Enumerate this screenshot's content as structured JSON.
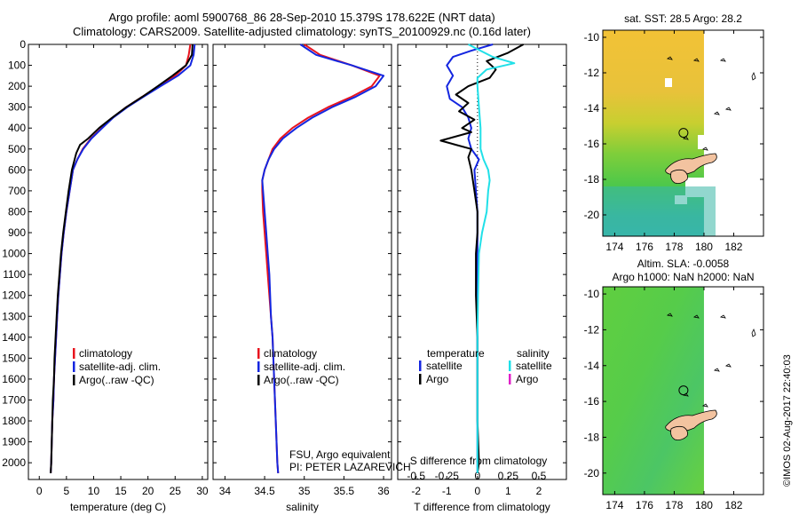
{
  "title_line1": "Argo profile: aoml 5900768_86 28-Sep-2010 15.379S 178.622E (NRT data)",
  "title_line2": "Climatology: CARS2009. Satellite-adjusted climatology: synTS_20100929.nc (0.16d later)",
  "credit": "©IMOS 02-Aug-2017 22:40:03",
  "colors": {
    "climatology": "#e8141e",
    "satellite": "#1426e0",
    "argo": "#000000",
    "sal_satellite": "#20e0e8",
    "sal_argo": "#e020c8"
  },
  "depth_ticks": [
    "0",
    "100",
    "200",
    "300",
    "400",
    "500",
    "600",
    "700",
    "800",
    "900",
    "1000",
    "1100",
    "1200",
    "1300",
    "1400",
    "1500",
    "1600",
    "1700",
    "1800",
    "1900",
    "2000"
  ],
  "chart_data": [
    {
      "type": "line",
      "panel": "temperature",
      "xlabel": "temperature (deg C)",
      "xticks": [
        "0",
        "5",
        "10",
        "15",
        "20",
        "25",
        "30"
      ],
      "xlim": [
        -2,
        31
      ],
      "ylim": [
        0,
        2080
      ],
      "y_inverted": true,
      "legend": [
        "climatology",
        "satellite-adj. clim.",
        "Argo(..raw -QC)"
      ],
      "series": [
        {
          "name": "climatology",
          "color": "red",
          "points": [
            [
              27.8,
              0
            ],
            [
              27.5,
              50
            ],
            [
              27,
              100
            ],
            [
              25,
              150
            ],
            [
              22,
              200
            ],
            [
              19,
              250
            ],
            [
              16,
              300
            ],
            [
              13.5,
              350
            ],
            [
              11.5,
              400
            ],
            [
              9.5,
              450
            ],
            [
              8,
              500
            ],
            [
              7,
              550
            ],
            [
              6.2,
              600
            ],
            [
              5.6,
              700
            ],
            [
              5,
              800
            ],
            [
              4.5,
              900
            ],
            [
              4.1,
              1000
            ],
            [
              3.8,
              1100
            ],
            [
              3.5,
              1200
            ],
            [
              3.3,
              1300
            ],
            [
              3.1,
              1400
            ],
            [
              2.9,
              1500
            ],
            [
              2.7,
              1600
            ],
            [
              2.6,
              1700
            ],
            [
              2.4,
              1800
            ],
            [
              2.3,
              1900
            ],
            [
              2.2,
              2000
            ],
            [
              2.1,
              2050
            ]
          ]
        },
        {
          "name": "satellite-adj. clim.",
          "color": "blue",
          "points": [
            [
              28.6,
              0
            ],
            [
              28.4,
              50
            ],
            [
              27.8,
              100
            ],
            [
              25.5,
              150
            ],
            [
              22.3,
              200
            ],
            [
              19.2,
              250
            ],
            [
              16.2,
              300
            ],
            [
              13.6,
              350
            ],
            [
              11.6,
              400
            ],
            [
              9.6,
              450
            ],
            [
              8.1,
              500
            ],
            [
              7,
              550
            ],
            [
              6.2,
              600
            ],
            [
              5.6,
              700
            ],
            [
              5,
              800
            ],
            [
              4.5,
              900
            ],
            [
              4.1,
              1000
            ],
            [
              3.8,
              1100
            ],
            [
              3.5,
              1200
            ],
            [
              3.3,
              1300
            ],
            [
              3.1,
              1400
            ],
            [
              2.9,
              1500
            ],
            [
              2.7,
              1600
            ],
            [
              2.6,
              1700
            ],
            [
              2.4,
              1800
            ],
            [
              2.3,
              1900
            ],
            [
              2.2,
              2000
            ],
            [
              2.1,
              2050
            ]
          ]
        },
        {
          "name": "Argo(..raw -QC)",
          "color": "black",
          "points": [
            [
              28.2,
              0
            ],
            [
              28.1,
              50
            ],
            [
              27,
              100
            ],
            [
              24.5,
              150
            ],
            [
              21.8,
              200
            ],
            [
              19,
              250
            ],
            [
              16,
              300
            ],
            [
              13.4,
              350
            ],
            [
              11,
              400
            ],
            [
              9,
              450
            ],
            [
              7.5,
              480
            ],
            [
              6.8,
              520
            ],
            [
              6,
              600
            ],
            [
              5.4,
              700
            ],
            [
              4.9,
              800
            ],
            [
              4.4,
              900
            ],
            [
              4,
              1000
            ],
            [
              3.7,
              1100
            ],
            [
              3.4,
              1200
            ],
            [
              3.2,
              1300
            ],
            [
              3,
              1400
            ],
            [
              2.8,
              1500
            ],
            [
              2.7,
              1600
            ],
            [
              2.5,
              1700
            ],
            [
              2.4,
              1800
            ],
            [
              2.3,
              1900
            ],
            [
              2.2,
              2000
            ],
            [
              2.1,
              2050
            ]
          ]
        }
      ]
    },
    {
      "type": "line",
      "panel": "salinity",
      "xlabel": "salinity",
      "xticks": [
        "34",
        "34.5",
        "35",
        "35.5",
        "36"
      ],
      "xlim": [
        33.85,
        36.1
      ],
      "ylim": [
        0,
        2080
      ],
      "y_inverted": true,
      "legend": [
        "climatology",
        "satellite-adj. clim.",
        "Argo(..raw -QC)"
      ],
      "annotation": [
        "FSU, Argo equivalent",
        "PI: PETER LAZAREVICH"
      ],
      "series": [
        {
          "name": "climatology",
          "color": "red",
          "points": [
            [
              35.0,
              0
            ],
            [
              35.2,
              50
            ],
            [
              35.6,
              100
            ],
            [
              35.95,
              150
            ],
            [
              35.85,
              200
            ],
            [
              35.6,
              250
            ],
            [
              35.3,
              300
            ],
            [
              35.05,
              350
            ],
            [
              34.85,
              400
            ],
            [
              34.7,
              450
            ],
            [
              34.6,
              500
            ],
            [
              34.55,
              550
            ],
            [
              34.5,
              600
            ],
            [
              34.47,
              650
            ],
            [
              34.47,
              700
            ],
            [
              34.48,
              800
            ],
            [
              34.5,
              900
            ],
            [
              34.52,
              1000
            ],
            [
              34.54,
              1100
            ],
            [
              34.56,
              1200
            ],
            [
              34.58,
              1300
            ],
            [
              34.6,
              1400
            ],
            [
              34.61,
              1500
            ],
            [
              34.62,
              1600
            ],
            [
              34.63,
              1700
            ],
            [
              34.64,
              1800
            ],
            [
              34.65,
              1900
            ],
            [
              34.66,
              2000
            ],
            [
              34.67,
              2050
            ]
          ]
        },
        {
          "name": "satellite-adj. clim.",
          "color": "blue",
          "points": [
            [
              34.95,
              0
            ],
            [
              35.15,
              50
            ],
            [
              35.6,
              100
            ],
            [
              36.0,
              150
            ],
            [
              35.9,
              200
            ],
            [
              35.65,
              250
            ],
            [
              35.35,
              300
            ],
            [
              35.1,
              350
            ],
            [
              34.9,
              400
            ],
            [
              34.73,
              450
            ],
            [
              34.62,
              500
            ],
            [
              34.55,
              550
            ],
            [
              34.5,
              600
            ],
            [
              34.47,
              650
            ],
            [
              34.48,
              700
            ],
            [
              34.5,
              800
            ],
            [
              34.52,
              900
            ],
            [
              34.54,
              1000
            ],
            [
              34.56,
              1100
            ],
            [
              34.57,
              1200
            ],
            [
              34.58,
              1300
            ],
            [
              34.6,
              1400
            ],
            [
              34.61,
              1500
            ],
            [
              34.62,
              1600
            ],
            [
              34.63,
              1700
            ],
            [
              34.64,
              1800
            ],
            [
              34.65,
              1900
            ],
            [
              34.66,
              2000
            ],
            [
              34.67,
              2050
            ]
          ]
        }
      ]
    },
    {
      "type": "line",
      "panel": "difference",
      "xlabel": "T difference from climatology",
      "xlabel_top": "S difference from climatology",
      "xticks": [
        "-2",
        "-1",
        "0",
        "1",
        "2"
      ],
      "xticks_salinity": [
        "-0.5",
        "-0.25",
        "0",
        "0.25",
        "0.5"
      ],
      "xlim": [
        -2.6,
        2.9
      ],
      "ylim": [
        0,
        2080
      ],
      "y_inverted": true,
      "legend": {
        "temperature": [
          "temperature",
          "satellite",
          "Argo"
        ],
        "salinity": [
          "salinity",
          "satellite",
          "Argo"
        ]
      },
      "series": [
        {
          "name": "temperature satellite",
          "color": "blue",
          "points": [
            [
              0.5,
              0
            ],
            [
              -0.2,
              30
            ],
            [
              -0.8,
              60
            ],
            [
              -1,
              100
            ],
            [
              -0.8,
              150
            ],
            [
              -1,
              200
            ],
            [
              -0.9,
              260
            ],
            [
              -0.5,
              300
            ],
            [
              -0.3,
              350
            ],
            [
              -0.2,
              400
            ],
            [
              -0.3,
              450
            ],
            [
              -0.2,
              500
            ],
            [
              0.05,
              550
            ],
            [
              -0.1,
              600
            ],
            [
              -0.05,
              700
            ],
            [
              0,
              800
            ],
            [
              0,
              900
            ],
            [
              0,
              1000
            ],
            [
              0,
              2050
            ]
          ]
        },
        {
          "name": "temperature Argo",
          "color": "black",
          "points": [
            [
              1.5,
              0
            ],
            [
              1,
              40
            ],
            [
              0.3,
              80
            ],
            [
              0.6,
              120
            ],
            [
              0.4,
              160
            ],
            [
              -0.3,
              200
            ],
            [
              -0.7,
              240
            ],
            [
              -0.3,
              280
            ],
            [
              -0.6,
              320
            ],
            [
              -0.1,
              360
            ],
            [
              -0.5,
              400
            ],
            [
              -0.2,
              420
            ],
            [
              -1.2,
              460
            ],
            [
              -0.7,
              480
            ],
            [
              -0.2,
              500
            ],
            [
              -0.3,
              540
            ],
            [
              -0.2,
              600
            ],
            [
              -0.1,
              700
            ],
            [
              0,
              800
            ],
            [
              0,
              900
            ],
            [
              -0.05,
              1000
            ],
            [
              -0.05,
              1200
            ],
            [
              0,
              1400
            ],
            [
              0,
              1600
            ],
            [
              0,
              1800
            ],
            [
              0.05,
              2000
            ],
            [
              0,
              2050
            ]
          ]
        },
        {
          "name": "salinity satellite",
          "color": "cyan",
          "points": [
            [
              -0.3,
              0
            ],
            [
              0.1,
              30
            ],
            [
              0.5,
              60
            ],
            [
              1.2,
              90
            ],
            [
              0.3,
              120
            ],
            [
              0,
              160
            ],
            [
              0,
              200
            ],
            [
              0.05,
              300
            ],
            [
              0.1,
              400
            ],
            [
              0.1,
              500
            ],
            [
              0.2,
              550
            ],
            [
              0.35,
              600
            ],
            [
              0.4,
              650
            ],
            [
              0.35,
              700
            ],
            [
              0.3,
              800
            ],
            [
              0.15,
              900
            ],
            [
              0.05,
              1000
            ],
            [
              0.02,
              1200
            ],
            [
              0,
              1400
            ],
            [
              0,
              2050
            ]
          ]
        }
      ]
    },
    {
      "type": "heatmap",
      "panel": "map-sst",
      "title": "sat. SST: 28.5 Argo: 28.2",
      "xticks": [
        "174",
        "176",
        "178",
        "180",
        "182"
      ],
      "yticks": [
        "-10",
        "-12",
        "-14",
        "-16",
        "-18",
        "-20"
      ],
      "xlim": [
        173.2,
        184.0
      ],
      "ylim": [
        -21.2,
        -9.6
      ],
      "argo_position": [
        178.622,
        -15.379
      ]
    },
    {
      "type": "heatmap",
      "panel": "map-sla",
      "title": "Altim. SLA: -0.0058",
      "subtitle": "Argo h1000: NaN h2000: NaN",
      "xticks": [
        "174",
        "176",
        "178",
        "180",
        "182"
      ],
      "yticks": [
        "-10",
        "-12",
        "-14",
        "-16",
        "-18",
        "-20"
      ],
      "xlim": [
        173.2,
        184.0
      ],
      "ylim": [
        -21.2,
        -9.6
      ],
      "argo_position": [
        178.622,
        -15.379
      ]
    }
  ]
}
